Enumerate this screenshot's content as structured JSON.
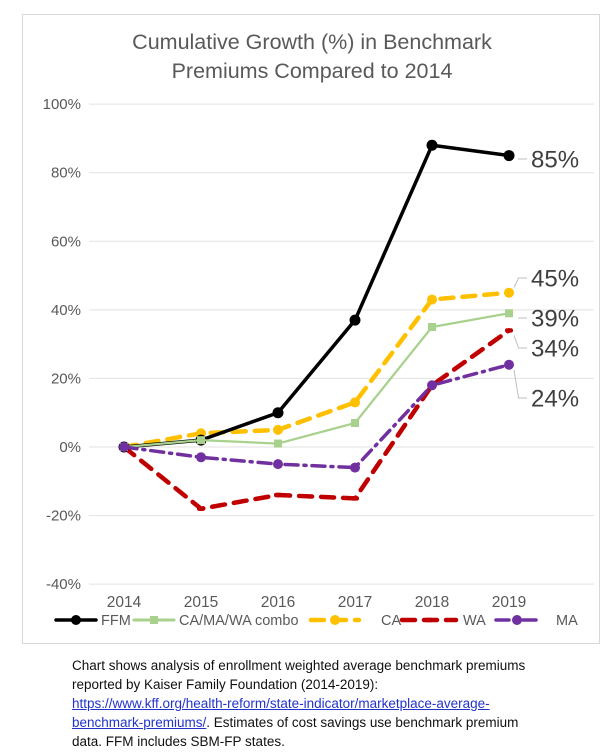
{
  "chart_data": {
    "type": "line",
    "title": "Cumulative Growth (%) in Benchmark Premiums Compared to 2014",
    "x": [
      "2014",
      "2015",
      "2016",
      "2017",
      "2018",
      "2019"
    ],
    "y_ticks": [
      "100%",
      "80%",
      "60%",
      "40%",
      "20%",
      "0%",
      "-20%",
      "-40%"
    ],
    "ylim": [
      -40,
      100
    ],
    "grid": true,
    "legend_position": "bottom",
    "series": [
      {
        "name": "FFM",
        "color": "#000000",
        "line_style": "solid",
        "marker": "circle",
        "values": [
          0,
          2,
          10,
          37,
          88,
          85
        ],
        "end_label": "85%"
      },
      {
        "name": "CA/MA/WA combo",
        "color": "#A9D18E",
        "line_style": "solid",
        "marker": "square",
        "values": [
          0,
          2,
          1,
          7,
          35,
          39
        ],
        "end_label": "39%"
      },
      {
        "name": "CA",
        "color": "#FFC000",
        "line_style": "dashed",
        "marker": "circle",
        "values": [
          0,
          4,
          5,
          13,
          43,
          45
        ],
        "end_label": "45%"
      },
      {
        "name": "WA",
        "color": "#C00000",
        "line_style": "dashed",
        "marker": "dash",
        "values": [
          0,
          -18,
          -14,
          -15,
          18,
          34
        ],
        "end_label": "34%"
      },
      {
        "name": "MA",
        "color": "#7030A0",
        "line_style": "dash-dot",
        "marker": "circle",
        "values": [
          0,
          -3,
          -5,
          -6,
          18,
          24
        ],
        "end_label": "24%"
      }
    ]
  },
  "footnote": {
    "before_link": "Chart shows analysis of enrollment weighted average benchmark premiums reported by Kaiser Family Foundation (2014-2019): ",
    "link_text": "https://www.kff.org/health-reform/state-indicator/marketplace-average-benchmark-premiums/",
    "after_link": ". Estimates of cost savings use benchmark premium data. FFM includes SBM-FP states."
  }
}
